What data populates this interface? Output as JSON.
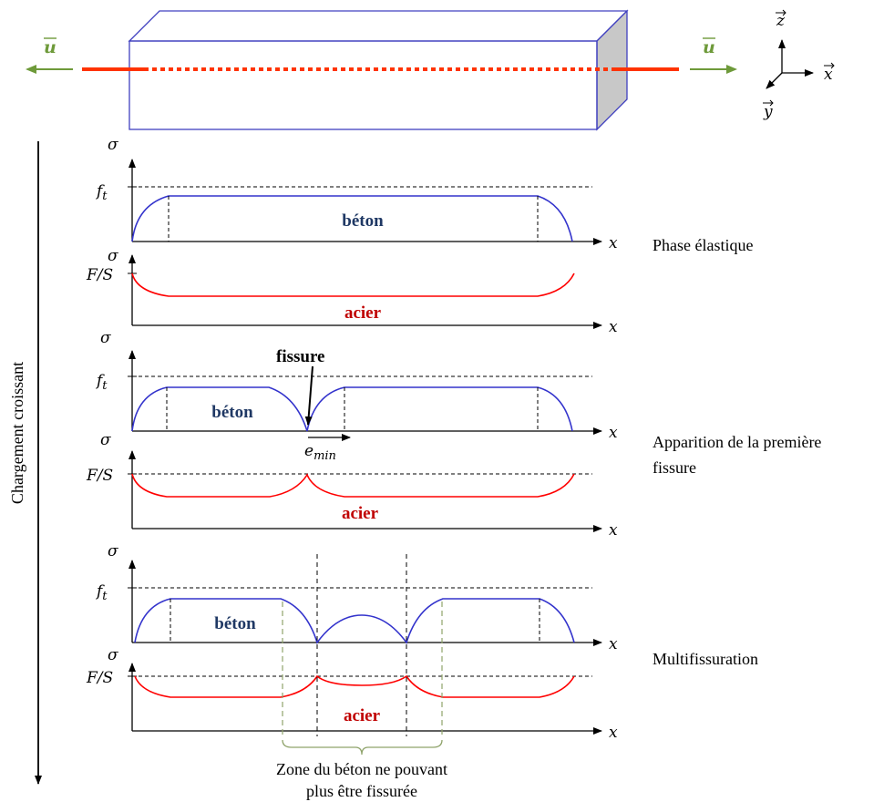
{
  "vectors": {
    "u_left": "u",
    "u_right": "u",
    "z_axis": "z",
    "x_axis": "x",
    "y_axis": "y"
  },
  "loading_axis_label": "Chargement croissant",
  "phases": [
    {
      "phase_label": "Phase élastique",
      "concrete": {
        "sigma": "σ",
        "threshold": "f",
        "threshold_sub": "t",
        "material": "béton",
        "x": "x"
      },
      "steel": {
        "sigma": "σ",
        "threshold": "F/S",
        "material": "acier",
        "x": "x"
      }
    },
    {
      "phase_label": "Apparition de la première fissure",
      "crack_label": "fissure",
      "spacing_label": "e",
      "spacing_sub": "min",
      "concrete": {
        "sigma": "σ",
        "threshold": "f",
        "threshold_sub": "t",
        "material": "béton",
        "x": "x"
      },
      "steel": {
        "sigma": "σ",
        "threshold": "F/S",
        "material": "acier",
        "x": "x"
      }
    },
    {
      "phase_label": "Multifissuration",
      "concrete": {
        "sigma": "σ",
        "threshold": "f",
        "threshold_sub": "t",
        "material": "béton",
        "x": "x"
      },
      "steel": {
        "sigma": "σ",
        "threshold": "F/S",
        "material": "acier",
        "x": "x"
      },
      "zone_label_line1": "Zone du béton ne pouvant",
      "zone_label_line2": "plus être fissurée"
    }
  ],
  "colors": {
    "concrete_curve": "#3333cc",
    "steel_curve": "#ff0000",
    "rebar": "#ff3300",
    "force_arrow": "#6e9a3a",
    "zone_lines": "#8fa36b",
    "block_edge": "#4040c0",
    "block_end_face": "#c8c8c8"
  }
}
